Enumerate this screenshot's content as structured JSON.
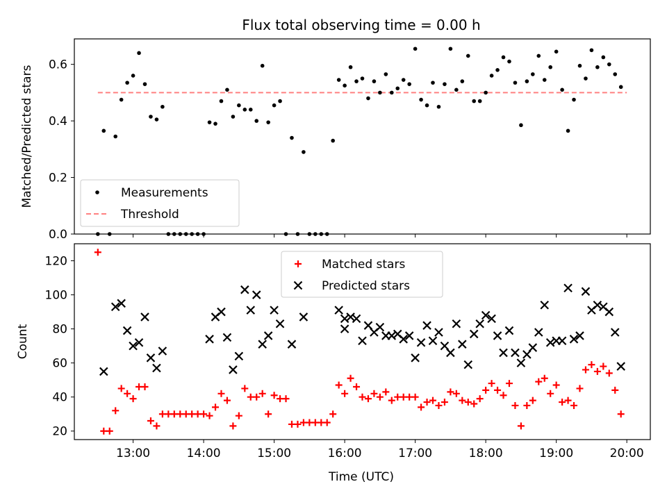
{
  "figure": {
    "title": "Flux total observing time = 0.00 h",
    "xlabel": "Time (UTC)"
  },
  "colors": {
    "measurements": "#000000",
    "threshold": "#ff8080",
    "matched": "#ff0000",
    "predicted": "#000000"
  },
  "chart_data": [
    {
      "type": "scatter",
      "title": "Flux total observing time = 0.00 h",
      "ylabel": "Matched/Predicted stars",
      "xlabel": "",
      "x_unit": "hours UTC",
      "xlim": [
        "12:10",
        "20:20"
      ],
      "ylim": [
        0,
        0.69
      ],
      "x_tick_labels": [
        "13:00",
        "14:00",
        "15:00",
        "16:00",
        "17:00",
        "18:00",
        "19:00",
        "20:00"
      ],
      "y_tick_labels": [
        "0.0",
        "0.2",
        "0.4",
        "0.6"
      ],
      "legend": {
        "position": "lower left",
        "entries": [
          "Measurements",
          "Threshold"
        ]
      },
      "threshold": {
        "name": "Threshold",
        "y": 0.5,
        "x_range": [
          "12:30",
          "20:00"
        ],
        "style": "dashed"
      },
      "series": [
        {
          "name": "Measurements",
          "marker": "dot",
          "points": [
            [
              "12:30",
              0.0
            ],
            [
              "12:35",
              0.365
            ],
            [
              "12:40",
              0.0
            ],
            [
              "12:45",
              0.345
            ],
            [
              "12:50",
              0.475
            ],
            [
              "12:55",
              0.535
            ],
            [
              "13:00",
              0.56
            ],
            [
              "13:05",
              0.64
            ],
            [
              "13:10",
              0.53
            ],
            [
              "13:15",
              0.415
            ],
            [
              "13:20",
              0.405
            ],
            [
              "13:25",
              0.45
            ],
            [
              "13:30",
              0.0
            ],
            [
              "13:35",
              0.0
            ],
            [
              "13:40",
              0.0
            ],
            [
              "13:45",
              0.0
            ],
            [
              "13:50",
              0.0
            ],
            [
              "13:55",
              0.0
            ],
            [
              "14:00",
              0.0
            ],
            [
              "14:05",
              0.395
            ],
            [
              "14:10",
              0.39
            ],
            [
              "14:15",
              0.47
            ],
            [
              "14:20",
              0.51
            ],
            [
              "14:25",
              0.415
            ],
            [
              "14:30",
              0.455
            ],
            [
              "14:35",
              0.44
            ],
            [
              "14:40",
              0.44
            ],
            [
              "14:45",
              0.4
            ],
            [
              "14:50",
              0.595
            ],
            [
              "14:55",
              0.395
            ],
            [
              "15:00",
              0.455
            ],
            [
              "15:05",
              0.47
            ],
            [
              "15:10",
              0.0
            ],
            [
              "15:15",
              0.34
            ],
            [
              "15:20",
              0.0
            ],
            [
              "15:25",
              0.29
            ],
            [
              "15:30",
              0.0
            ],
            [
              "15:35",
              0.0
            ],
            [
              "15:40",
              0.0
            ],
            [
              "15:45",
              0.0
            ],
            [
              "15:50",
              0.33
            ],
            [
              "15:55",
              0.545
            ],
            [
              "16:00",
              0.525
            ],
            [
              "16:05",
              0.59
            ],
            [
              "16:10",
              0.54
            ],
            [
              "16:15",
              0.55
            ],
            [
              "16:20",
              0.48
            ],
            [
              "16:25",
              0.54
            ],
            [
              "16:30",
              0.5
            ],
            [
              "16:35",
              0.565
            ],
            [
              "16:40",
              0.5
            ],
            [
              "16:45",
              0.515
            ],
            [
              "16:50",
              0.545
            ],
            [
              "16:55",
              0.53
            ],
            [
              "17:00",
              0.655
            ],
            [
              "17:05",
              0.475
            ],
            [
              "17:10",
              0.455
            ],
            [
              "17:15",
              0.535
            ],
            [
              "17:20",
              0.45
            ],
            [
              "17:25",
              0.53
            ],
            [
              "17:30",
              0.655
            ],
            [
              "17:35",
              0.51
            ],
            [
              "17:40",
              0.54
            ],
            [
              "17:45",
              0.63
            ],
            [
              "17:50",
              0.47
            ],
            [
              "17:55",
              0.47
            ],
            [
              "18:00",
              0.5
            ],
            [
              "18:05",
              0.56
            ],
            [
              "18:10",
              0.58
            ],
            [
              "18:15",
              0.625
            ],
            [
              "18:20",
              0.61
            ],
            [
              "18:25",
              0.535
            ],
            [
              "18:30",
              0.385
            ],
            [
              "18:35",
              0.54
            ],
            [
              "18:40",
              0.565
            ],
            [
              "18:45",
              0.63
            ],
            [
              "18:50",
              0.545
            ],
            [
              "18:55",
              0.59
            ],
            [
              "19:00",
              0.645
            ],
            [
              "19:05",
              0.51
            ],
            [
              "19:10",
              0.365
            ],
            [
              "19:15",
              0.475
            ],
            [
              "19:20",
              0.595
            ],
            [
              "19:25",
              0.55
            ],
            [
              "19:30",
              0.65
            ],
            [
              "19:35",
              0.59
            ],
            [
              "19:40",
              0.625
            ],
            [
              "19:45",
              0.6
            ],
            [
              "19:50",
              0.565
            ],
            [
              "19:55",
              0.52
            ]
          ]
        }
      ]
    },
    {
      "type": "scatter",
      "title": "",
      "ylabel": "Count",
      "xlabel": "Time (UTC)",
      "x_unit": "hours UTC",
      "xlim": [
        "12:10",
        "20:20"
      ],
      "ylim": [
        15,
        130
      ],
      "x_tick_labels": [
        "13:00",
        "14:00",
        "15:00",
        "16:00",
        "17:00",
        "18:00",
        "19:00",
        "20:00"
      ],
      "y_tick_labels": [
        "20",
        "40",
        "60",
        "80",
        "100",
        "120"
      ],
      "legend": {
        "position": "upper center",
        "entries": [
          "Matched stars",
          "Predicted stars"
        ]
      },
      "series": [
        {
          "name": "Matched stars",
          "marker": "plus",
          "points": [
            [
              "12:30",
              125
            ],
            [
              "12:35",
              20
            ],
            [
              "12:40",
              20
            ],
            [
              "12:45",
              32
            ],
            [
              "12:50",
              45
            ],
            [
              "12:55",
              42
            ],
            [
              "13:00",
              39
            ],
            [
              "13:05",
              46
            ],
            [
              "13:10",
              46
            ],
            [
              "13:15",
              26
            ],
            [
              "13:20",
              23
            ],
            [
              "13:25",
              30
            ],
            [
              "13:30",
              30
            ],
            [
              "13:35",
              30
            ],
            [
              "13:40",
              30
            ],
            [
              "13:45",
              30
            ],
            [
              "13:50",
              30
            ],
            [
              "13:55",
              30
            ],
            [
              "14:00",
              30
            ],
            [
              "14:05",
              29
            ],
            [
              "14:10",
              34
            ],
            [
              "14:15",
              42
            ],
            [
              "14:20",
              38
            ],
            [
              "14:25",
              23
            ],
            [
              "14:30",
              29
            ],
            [
              "14:35",
              45
            ],
            [
              "14:40",
              40
            ],
            [
              "14:45",
              40
            ],
            [
              "14:50",
              42
            ],
            [
              "14:55",
              30
            ],
            [
              "15:00",
              41
            ],
            [
              "15:05",
              39
            ],
            [
              "15:10",
              39
            ],
            [
              "15:15",
              24
            ],
            [
              "15:20",
              24
            ],
            [
              "15:25",
              25
            ],
            [
              "15:30",
              25
            ],
            [
              "15:35",
              25
            ],
            [
              "15:40",
              25
            ],
            [
              "15:45",
              25
            ],
            [
              "15:50",
              30
            ],
            [
              "15:55",
              47
            ],
            [
              "16:00",
              42
            ],
            [
              "16:05",
              51
            ],
            [
              "16:10",
              46
            ],
            [
              "16:15",
              40
            ],
            [
              "16:20",
              39
            ],
            [
              "16:25",
              42
            ],
            [
              "16:30",
              40
            ],
            [
              "16:35",
              43
            ],
            [
              "16:40",
              38
            ],
            [
              "16:45",
              40
            ],
            [
              "16:50",
              40
            ],
            [
              "16:55",
              40
            ],
            [
              "17:00",
              40
            ],
            [
              "17:05",
              34
            ],
            [
              "17:10",
              37
            ],
            [
              "17:15",
              38
            ],
            [
              "17:20",
              35
            ],
            [
              "17:25",
              37
            ],
            [
              "17:30",
              43
            ],
            [
              "17:35",
              42
            ],
            [
              "17:40",
              38
            ],
            [
              "17:45",
              37
            ],
            [
              "17:50",
              36
            ],
            [
              "17:55",
              39
            ],
            [
              "18:00",
              44
            ],
            [
              "18:05",
              48
            ],
            [
              "18:10",
              44
            ],
            [
              "18:15",
              41
            ],
            [
              "18:20",
              48
            ],
            [
              "18:25",
              35
            ],
            [
              "18:30",
              23
            ],
            [
              "18:35",
              35
            ],
            [
              "18:40",
              38
            ],
            [
              "18:45",
              49
            ],
            [
              "18:50",
              51
            ],
            [
              "18:55",
              42
            ],
            [
              "19:00",
              47
            ],
            [
              "19:05",
              37
            ],
            [
              "19:10",
              38
            ],
            [
              "19:15",
              35
            ],
            [
              "19:20",
              45
            ],
            [
              "19:25",
              56
            ],
            [
              "19:30",
              59
            ],
            [
              "19:35",
              55
            ],
            [
              "19:40",
              58
            ],
            [
              "19:45",
              54
            ],
            [
              "19:50",
              44
            ],
            [
              "19:55",
              30
            ]
          ]
        },
        {
          "name": "Predicted stars",
          "marker": "x",
          "points": [
            [
              "12:35",
              55
            ],
            [
              "12:45",
              93
            ],
            [
              "12:50",
              95
            ],
            [
              "12:55",
              79
            ],
            [
              "13:00",
              70
            ],
            [
              "13:05",
              72
            ],
            [
              "13:10",
              87
            ],
            [
              "13:15",
              63
            ],
            [
              "13:20",
              57
            ],
            [
              "13:25",
              67
            ],
            [
              "14:05",
              74
            ],
            [
              "14:10",
              87
            ],
            [
              "14:15",
              90
            ],
            [
              "14:20",
              75
            ],
            [
              "14:25",
              56
            ],
            [
              "14:30",
              64
            ],
            [
              "14:35",
              103
            ],
            [
              "14:40",
              91
            ],
            [
              "14:45",
              100
            ],
            [
              "14:50",
              71
            ],
            [
              "14:55",
              76
            ],
            [
              "15:00",
              91
            ],
            [
              "15:05",
              83
            ],
            [
              "15:15",
              71
            ],
            [
              "15:25",
              87
            ],
            [
              "15:55",
              91
            ],
            [
              "16:00",
              86
            ],
            [
              "16:00",
              80
            ],
            [
              "16:05",
              87
            ],
            [
              "16:10",
              86
            ],
            [
              "16:15",
              73
            ],
            [
              "16:20",
              82
            ],
            [
              "16:25",
              78
            ],
            [
              "16:30",
              81
            ],
            [
              "16:35",
              76
            ],
            [
              "16:40",
              76
            ],
            [
              "16:45",
              77
            ],
            [
              "16:50",
              74
            ],
            [
              "16:55",
              76
            ],
            [
              "17:00",
              63
            ],
            [
              "17:05",
              72
            ],
            [
              "17:10",
              82
            ],
            [
              "17:15",
              73
            ],
            [
              "17:20",
              78
            ],
            [
              "17:25",
              70
            ],
            [
              "17:30",
              66
            ],
            [
              "17:35",
              83
            ],
            [
              "17:40",
              71
            ],
            [
              "17:45",
              59
            ],
            [
              "17:50",
              77
            ],
            [
              "17:55",
              83
            ],
            [
              "18:00",
              88
            ],
            [
              "18:05",
              86
            ],
            [
              "18:10",
              76
            ],
            [
              "18:15",
              66
            ],
            [
              "18:20",
              79
            ],
            [
              "18:25",
              66
            ],
            [
              "18:30",
              60
            ],
            [
              "18:35",
              65
            ],
            [
              "18:40",
              69
            ],
            [
              "18:45",
              78
            ],
            [
              "18:50",
              94
            ],
            [
              "18:55",
              72
            ],
            [
              "19:00",
              73
            ],
            [
              "19:05",
              73
            ],
            [
              "19:10",
              104
            ],
            [
              "19:15",
              74
            ],
            [
              "19:20",
              76
            ],
            [
              "19:25",
              102
            ],
            [
              "19:30",
              91
            ],
            [
              "19:35",
              94
            ],
            [
              "19:40",
              93
            ],
            [
              "19:45",
              90
            ],
            [
              "19:50",
              78
            ],
            [
              "19:55",
              58
            ]
          ]
        }
      ]
    }
  ]
}
